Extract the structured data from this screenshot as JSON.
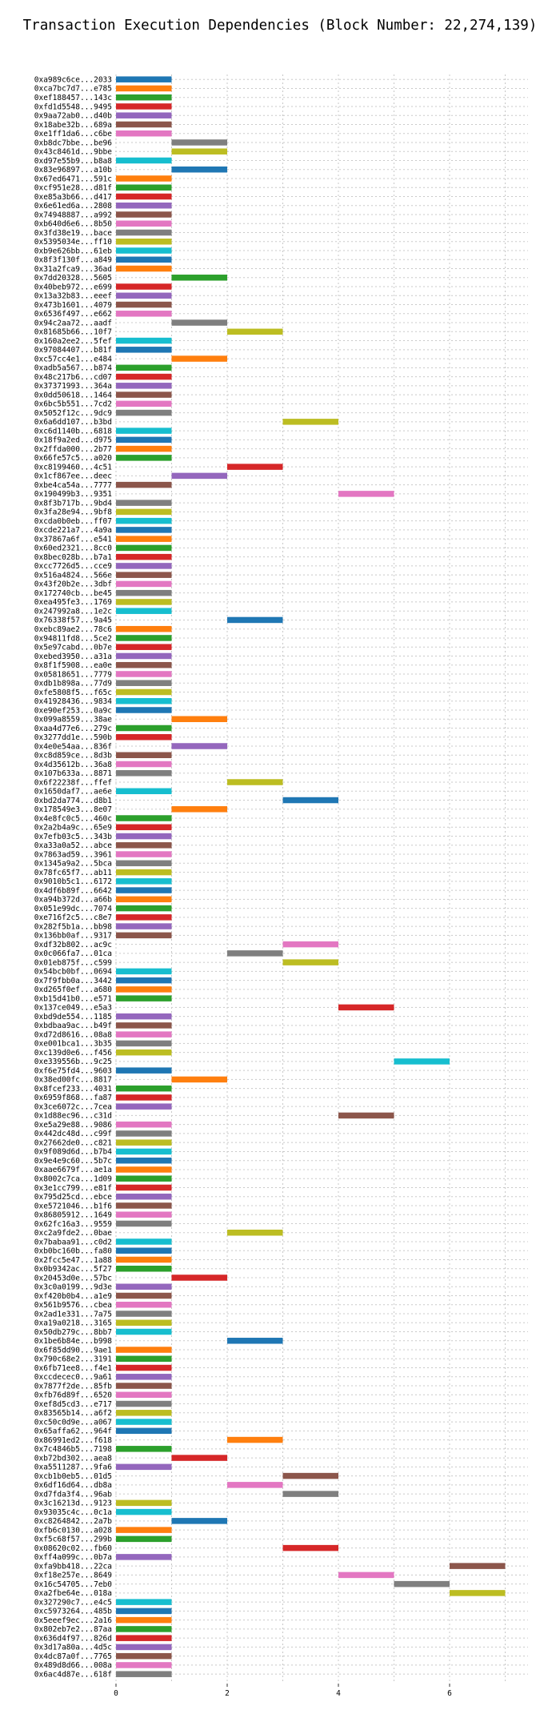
{
  "chart_data": {
    "type": "bar",
    "orientation": "horizontal",
    "title": "Transaction Execution Dependencies (Block Number: 22,274,139)",
    "xlabel": "",
    "ylabel": "",
    "xlim": [
      0,
      7.4
    ],
    "x_ticks": [
      0,
      2,
      4,
      6
    ],
    "grid": true,
    "legend": "none",
    "palette": [
      "#1f77b4",
      "#ff7f0e",
      "#2ca02c",
      "#d62728",
      "#9467bd",
      "#8c564b",
      "#e377c2",
      "#7f7f7f",
      "#bcbd22",
      "#17becf"
    ],
    "transactions": [
      {
        "label": "0xa989c6ce...2033",
        "start": 0,
        "end": 1
      },
      {
        "label": "0xca7bc7d7...e785",
        "start": 0,
        "end": 1
      },
      {
        "label": "0xef188457...143c",
        "start": 0,
        "end": 1
      },
      {
        "label": "0xfd1d5548...9495",
        "start": 0,
        "end": 1
      },
      {
        "label": "0x9aa72ab0...d40b",
        "start": 0,
        "end": 1
      },
      {
        "label": "0x18abe32b...689a",
        "start": 0,
        "end": 1
      },
      {
        "label": "0xe1ff1da6...c6be",
        "start": 0,
        "end": 1
      },
      {
        "label": "0xb8dc7bbe...be96",
        "start": 1,
        "end": 2
      },
      {
        "label": "0x43c8461d...9bbe",
        "start": 1,
        "end": 2
      },
      {
        "label": "0xd97e55b9...b8a8",
        "start": 0,
        "end": 1
      },
      {
        "label": "0x83e96897...a10b",
        "start": 1,
        "end": 2
      },
      {
        "label": "0x67ed6471...591c",
        "start": 0,
        "end": 1
      },
      {
        "label": "0xcf951e28...d81f",
        "start": 0,
        "end": 1
      },
      {
        "label": "0xe85a3b66...d417",
        "start": 0,
        "end": 1
      },
      {
        "label": "0x6e61ed6a...2808",
        "start": 0,
        "end": 1
      },
      {
        "label": "0x74948887...a992",
        "start": 0,
        "end": 1
      },
      {
        "label": "0xb640d6e6...8b50",
        "start": 0,
        "end": 1
      },
      {
        "label": "0x3fd38e19...bace",
        "start": 0,
        "end": 1
      },
      {
        "label": "0x5395034e...ff10",
        "start": 0,
        "end": 1
      },
      {
        "label": "0xb9e626bb...61eb",
        "start": 0,
        "end": 1
      },
      {
        "label": "0x8f3f130f...a849",
        "start": 0,
        "end": 1
      },
      {
        "label": "0x31a2fca9...36ad",
        "start": 0,
        "end": 1
      },
      {
        "label": "0x7dd20328...5605",
        "start": 1,
        "end": 2
      },
      {
        "label": "0x40beb972...e699",
        "start": 0,
        "end": 1
      },
      {
        "label": "0x13a32b83...eeef",
        "start": 0,
        "end": 1
      },
      {
        "label": "0x473b1601...4079",
        "start": 0,
        "end": 1
      },
      {
        "label": "0x6536f497...e662",
        "start": 0,
        "end": 1
      },
      {
        "label": "0x94c2aa72...aadf",
        "start": 1,
        "end": 2
      },
      {
        "label": "0x81685b66...10f7",
        "start": 2,
        "end": 3
      },
      {
        "label": "0x160a2ee2...5fef",
        "start": 0,
        "end": 1
      },
      {
        "label": "0x97084407...b81f",
        "start": 0,
        "end": 1
      },
      {
        "label": "0xc57cc4e1...e484",
        "start": 1,
        "end": 2
      },
      {
        "label": "0xadb5a567...b874",
        "start": 0,
        "end": 1
      },
      {
        "label": "0x48c217b6...cd07",
        "start": 0,
        "end": 1
      },
      {
        "label": "0x37371993...364a",
        "start": 0,
        "end": 1
      },
      {
        "label": "0x0dd50618...1464",
        "start": 0,
        "end": 1
      },
      {
        "label": "0x6bc5b551...7cd2",
        "start": 0,
        "end": 1
      },
      {
        "label": "0x5052f12c...9dc9",
        "start": 0,
        "end": 1
      },
      {
        "label": "0x6a6dd107...b3bd",
        "start": 3,
        "end": 4
      },
      {
        "label": "0xc6d1140b...6818",
        "start": 0,
        "end": 1
      },
      {
        "label": "0x18f9a2ed...d975",
        "start": 0,
        "end": 1
      },
      {
        "label": "0x2ffda000...2b77",
        "start": 0,
        "end": 1
      },
      {
        "label": "0x66fe57c5...a020",
        "start": 0,
        "end": 1
      },
      {
        "label": "0xc8199460...4c51",
        "start": 2,
        "end": 3
      },
      {
        "label": "0x1cf867ee...deec",
        "start": 1,
        "end": 2
      },
      {
        "label": "0xbe4ca54a...7777",
        "start": 0,
        "end": 1
      },
      {
        "label": "0x190499b3...9351",
        "start": 4,
        "end": 5
      },
      {
        "label": "0x8f3b717b...9bd4",
        "start": 0,
        "end": 1
      },
      {
        "label": "0x3fa28e94...9bf8",
        "start": 0,
        "end": 1
      },
      {
        "label": "0xcda0b0eb...ff07",
        "start": 0,
        "end": 1
      },
      {
        "label": "0xcde221a7...4a9a",
        "start": 0,
        "end": 1
      },
      {
        "label": "0x37867a6f...e541",
        "start": 0,
        "end": 1
      },
      {
        "label": "0x60ed2321...8cc0",
        "start": 0,
        "end": 1
      },
      {
        "label": "0x8bec028b...b7a1",
        "start": 0,
        "end": 1
      },
      {
        "label": "0xcc7726d5...cce9",
        "start": 0,
        "end": 1
      },
      {
        "label": "0x516a4824...566e",
        "start": 0,
        "end": 1
      },
      {
        "label": "0x43f20b2e...3dbf",
        "start": 0,
        "end": 1
      },
      {
        "label": "0x172740cb...be45",
        "start": 0,
        "end": 1
      },
      {
        "label": "0xea495fe3...1769",
        "start": 0,
        "end": 1
      },
      {
        "label": "0x247992a8...1e2c",
        "start": 0,
        "end": 1
      },
      {
        "label": "0x76338f57...9a45",
        "start": 2,
        "end": 3
      },
      {
        "label": "0xebc89ae2...78c6",
        "start": 0,
        "end": 1
      },
      {
        "label": "0x94811fd8...5ce2",
        "start": 0,
        "end": 1
      },
      {
        "label": "0x5e97cabd...0b7e",
        "start": 0,
        "end": 1
      },
      {
        "label": "0xebed3950...a31a",
        "start": 0,
        "end": 1
      },
      {
        "label": "0x8f1f5908...ea0e",
        "start": 0,
        "end": 1
      },
      {
        "label": "0x05818651...7779",
        "start": 0,
        "end": 1
      },
      {
        "label": "0xdb1b898a...77d9",
        "start": 0,
        "end": 1
      },
      {
        "label": "0xfe5808f5...f65c",
        "start": 0,
        "end": 1
      },
      {
        "label": "0x41928436...9834",
        "start": 0,
        "end": 1
      },
      {
        "label": "0xe90ef253...0a9c",
        "start": 0,
        "end": 1
      },
      {
        "label": "0x099a8559...38ae",
        "start": 1,
        "end": 2
      },
      {
        "label": "0xaa4d77e6...279c",
        "start": 0,
        "end": 1
      },
      {
        "label": "0x3277dd1e...590b",
        "start": 0,
        "end": 1
      },
      {
        "label": "0x4e0e54aa...836f",
        "start": 1,
        "end": 2
      },
      {
        "label": "0xc8d859ce...8d3b",
        "start": 0,
        "end": 1
      },
      {
        "label": "0x4d35612b...36a8",
        "start": 0,
        "end": 1
      },
      {
        "label": "0x107b633a...8871",
        "start": 0,
        "end": 1
      },
      {
        "label": "0x6f22238f...ffef",
        "start": 2,
        "end": 3
      },
      {
        "label": "0x1650daf7...ae6e",
        "start": 0,
        "end": 1
      },
      {
        "label": "0xbd2da774...d8b1",
        "start": 3,
        "end": 4
      },
      {
        "label": "0x178549e3...8e07",
        "start": 1,
        "end": 2
      },
      {
        "label": "0x4e8fc0c5...460c",
        "start": 0,
        "end": 1
      },
      {
        "label": "0x2a2b4a9c...65e9",
        "start": 0,
        "end": 1
      },
      {
        "label": "0x7efb03c5...343b",
        "start": 0,
        "end": 1
      },
      {
        "label": "0xa33a0a52...abce",
        "start": 0,
        "end": 1
      },
      {
        "label": "0x7863ad59...3961",
        "start": 0,
        "end": 1
      },
      {
        "label": "0x1345a9a2...5bca",
        "start": 0,
        "end": 1
      },
      {
        "label": "0x78fc65f7...ab11",
        "start": 0,
        "end": 1
      },
      {
        "label": "0x9010b5c1...6172",
        "start": 0,
        "end": 1
      },
      {
        "label": "0x4df6b89f...6642",
        "start": 0,
        "end": 1
      },
      {
        "label": "0xa94b372d...a66b",
        "start": 0,
        "end": 1
      },
      {
        "label": "0x051e99dc...7074",
        "start": 0,
        "end": 1
      },
      {
        "label": "0xe716f2c5...c8e7",
        "start": 0,
        "end": 1
      },
      {
        "label": "0x282f5b1a...bb98",
        "start": 0,
        "end": 1
      },
      {
        "label": "0x136bb0af...9317",
        "start": 0,
        "end": 1
      },
      {
        "label": "0xdf32b802...ac9c",
        "start": 3,
        "end": 4
      },
      {
        "label": "0x0c066fa7...01ca",
        "start": 2,
        "end": 3
      },
      {
        "label": "0x01eb875f...c599",
        "start": 3,
        "end": 4
      },
      {
        "label": "0x54bcb0bf...0694",
        "start": 0,
        "end": 1
      },
      {
        "label": "0x7f9fbb0a...3442",
        "start": 0,
        "end": 1
      },
      {
        "label": "0xd265f0ef...a680",
        "start": 0,
        "end": 1
      },
      {
        "label": "0xb15d41b0...e571",
        "start": 0,
        "end": 1
      },
      {
        "label": "0x137ce049...e5a3",
        "start": 4,
        "end": 5
      },
      {
        "label": "0xbd9de554...1185",
        "start": 0,
        "end": 1
      },
      {
        "label": "0xbdbaa9ac...b49f",
        "start": 0,
        "end": 1
      },
      {
        "label": "0xd72d8616...08a8",
        "start": 0,
        "end": 1
      },
      {
        "label": "0xe001bca1...3b35",
        "start": 0,
        "end": 1
      },
      {
        "label": "0xc139d0e6...f456",
        "start": 0,
        "end": 1
      },
      {
        "label": "0xe339556b...9c25",
        "start": 5,
        "end": 6
      },
      {
        "label": "0xf6e75fd4...9603",
        "start": 0,
        "end": 1
      },
      {
        "label": "0x38ed00fc...8817",
        "start": 1,
        "end": 2
      },
      {
        "label": "0x8fcef233...4031",
        "start": 0,
        "end": 1
      },
      {
        "label": "0x6959f868...fa87",
        "start": 0,
        "end": 1
      },
      {
        "label": "0x3ce6072c...7cea",
        "start": 0,
        "end": 1
      },
      {
        "label": "0x1d88ec96...c31d",
        "start": 4,
        "end": 5
      },
      {
        "label": "0xe5a29e88...9086",
        "start": 0,
        "end": 1
      },
      {
        "label": "0x442dc48d...c99f",
        "start": 0,
        "end": 1
      },
      {
        "label": "0x27662de0...c821",
        "start": 0,
        "end": 1
      },
      {
        "label": "0x9f089d6d...b7b4",
        "start": 0,
        "end": 1
      },
      {
        "label": "0x9e4e9c60...5b7c",
        "start": 0,
        "end": 1
      },
      {
        "label": "0xaae6679f...ae1a",
        "start": 0,
        "end": 1
      },
      {
        "label": "0x8002c7ca...1d09",
        "start": 0,
        "end": 1
      },
      {
        "label": "0x3e1cc799...e81f",
        "start": 0,
        "end": 1
      },
      {
        "label": "0x795d25cd...ebce",
        "start": 0,
        "end": 1
      },
      {
        "label": "0xe5721046...b1f6",
        "start": 0,
        "end": 1
      },
      {
        "label": "0x86805912...1649",
        "start": 0,
        "end": 1
      },
      {
        "label": "0x62fc16a3...9559",
        "start": 0,
        "end": 1
      },
      {
        "label": "0xc2a9fde2...0bae",
        "start": 2,
        "end": 3
      },
      {
        "label": "0x7babaa91...c0d2",
        "start": 0,
        "end": 1
      },
      {
        "label": "0xb0bc160b...fa80",
        "start": 0,
        "end": 1
      },
      {
        "label": "0x2fcc5e47...1a88",
        "start": 0,
        "end": 1
      },
      {
        "label": "0x0b9342ac...5f27",
        "start": 0,
        "end": 1
      },
      {
        "label": "0x20453d0e...57bc",
        "start": 1,
        "end": 2
      },
      {
        "label": "0x3c0a0199...9d3e",
        "start": 0,
        "end": 1
      },
      {
        "label": "0xf420b0b4...a1e9",
        "start": 0,
        "end": 1
      },
      {
        "label": "0x561b9576...cbea",
        "start": 0,
        "end": 1
      },
      {
        "label": "0x2ad1e331...7a75",
        "start": 0,
        "end": 1
      },
      {
        "label": "0xa19a0218...3165",
        "start": 0,
        "end": 1
      },
      {
        "label": "0x50db279c...8bb7",
        "start": 0,
        "end": 1
      },
      {
        "label": "0x1be6b84e...b998",
        "start": 2,
        "end": 3
      },
      {
        "label": "0x6f85dd90...9ae1",
        "start": 0,
        "end": 1
      },
      {
        "label": "0x790c68e2...3191",
        "start": 0,
        "end": 1
      },
      {
        "label": "0x6fb71ee8...f4e1",
        "start": 0,
        "end": 1
      },
      {
        "label": "0xccdecec0...9a61",
        "start": 0,
        "end": 1
      },
      {
        "label": "0x7877f2de...85fb",
        "start": 0,
        "end": 1
      },
      {
        "label": "0xfb76d89f...6520",
        "start": 0,
        "end": 1
      },
      {
        "label": "0xef8d5cd3...e717",
        "start": 0,
        "end": 1
      },
      {
        "label": "0x83565b14...a6f2",
        "start": 0,
        "end": 1
      },
      {
        "label": "0xc50c0d9e...a067",
        "start": 0,
        "end": 1
      },
      {
        "label": "0x65affa62...964f",
        "start": 0,
        "end": 1
      },
      {
        "label": "0x86991ed2...f618",
        "start": 2,
        "end": 3
      },
      {
        "label": "0x7c4846b5...7198",
        "start": 0,
        "end": 1
      },
      {
        "label": "0xb72bd302...aea8",
        "start": 1,
        "end": 2
      },
      {
        "label": "0xa5511287...9fa6",
        "start": 0,
        "end": 1
      },
      {
        "label": "0xcb1b0eb5...01d5",
        "start": 3,
        "end": 4
      },
      {
        "label": "0x6df16d64...db8a",
        "start": 2,
        "end": 3
      },
      {
        "label": "0xd7fda3f4...96ab",
        "start": 3,
        "end": 4
      },
      {
        "label": "0x3c16213d...9123",
        "start": 0,
        "end": 1
      },
      {
        "label": "0x93035c4c...0c1a",
        "start": 0,
        "end": 1
      },
      {
        "label": "0xc8264842...2a7b",
        "start": 1,
        "end": 2
      },
      {
        "label": "0xfb6c0130...a028",
        "start": 0,
        "end": 1
      },
      {
        "label": "0xf5c68f57...299b",
        "start": 0,
        "end": 1
      },
      {
        "label": "0x08620c02...fb60",
        "start": 3,
        "end": 4
      },
      {
        "label": "0xff4a099c...0b7a",
        "start": 0,
        "end": 1
      },
      {
        "label": "0xfa9bb418...22ca",
        "start": 6,
        "end": 7
      },
      {
        "label": "0xf18e257e...8649",
        "start": 4,
        "end": 5
      },
      {
        "label": "0x16c54705...7eb0",
        "start": 5,
        "end": 6
      },
      {
        "label": "0xa2fbe64e...018a",
        "start": 6,
        "end": 7
      },
      {
        "label": "0x327290c7...e4c5",
        "start": 0,
        "end": 1
      },
      {
        "label": "0xc5973264...485b",
        "start": 0,
        "end": 1
      },
      {
        "label": "0x5eeef9ec...2a16",
        "start": 0,
        "end": 1
      },
      {
        "label": "0x802eb7e2...87aa",
        "start": 0,
        "end": 1
      },
      {
        "label": "0x636d4f97...826d",
        "start": 0,
        "end": 1
      },
      {
        "label": "0x3d17a80a...4d5c",
        "start": 0,
        "end": 1
      },
      {
        "label": "0x4dc87a0f...7765",
        "start": 0,
        "end": 1
      },
      {
        "label": "0x489d8d66...008a",
        "start": 0,
        "end": 1
      },
      {
        "label": "0x6ac4d87e...618f",
        "start": 0,
        "end": 1
      }
    ]
  }
}
